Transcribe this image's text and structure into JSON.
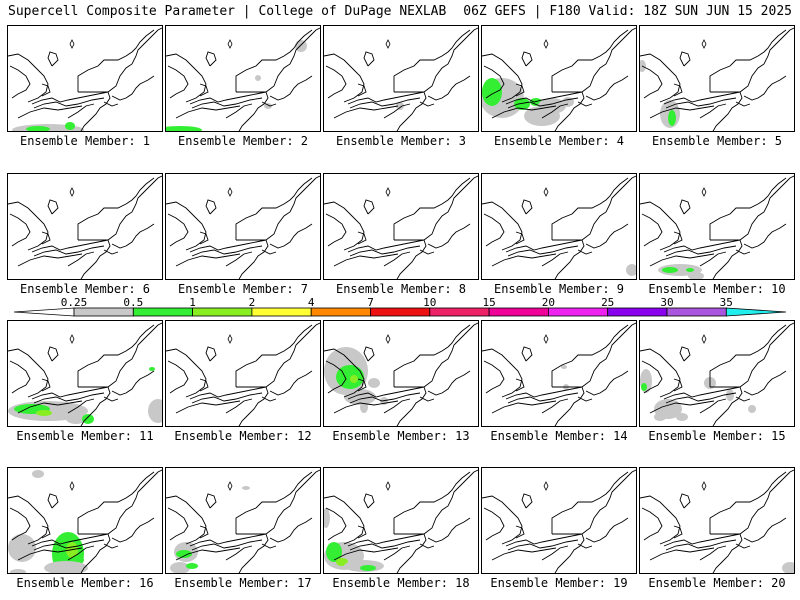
{
  "header": {
    "left": "Supercell Composite Parameter | College of DuPage NEXLAB",
    "right": "06Z GEFS | F180 Valid: 18Z SUN JUN 15 2025"
  },
  "colorbar": {
    "levels": [
      "0.25",
      "0.5",
      "1",
      "2",
      "4",
      "7",
      "10",
      "15",
      "20",
      "25",
      "30",
      "35"
    ],
    "colors": [
      "#c8c8c8",
      "#33ee33",
      "#88ee22",
      "#ffff33",
      "#ff8800",
      "#ee1111",
      "#ee2266",
      "#ee0099",
      "#ee22ee",
      "#8800ee",
      "#aa55dd",
      "#22eeee"
    ]
  },
  "members": [
    {
      "label": "Ensemble Member: 1"
    },
    {
      "label": "Ensemble Member: 2"
    },
    {
      "label": "Ensemble Member: 3"
    },
    {
      "label": "Ensemble Member: 4"
    },
    {
      "label": "Ensemble Member: 5"
    },
    {
      "label": "Ensemble Member: 6"
    },
    {
      "label": "Ensemble Member: 7"
    },
    {
      "label": "Ensemble Member: 8"
    },
    {
      "label": "Ensemble Member: 9"
    },
    {
      "label": "Ensemble Member: 10"
    },
    {
      "label": "Ensemble Member: 11"
    },
    {
      "label": "Ensemble Member: 12"
    },
    {
      "label": "Ensemble Member: 13"
    },
    {
      "label": "Ensemble Member: 14"
    },
    {
      "label": "Ensemble Member: 15"
    },
    {
      "label": "Ensemble Member: 16"
    },
    {
      "label": "Ensemble Member: 17"
    },
    {
      "label": "Ensemble Member: 18"
    },
    {
      "label": "Ensemble Member: 19"
    },
    {
      "label": "Ensemble Member: 20"
    }
  ]
}
